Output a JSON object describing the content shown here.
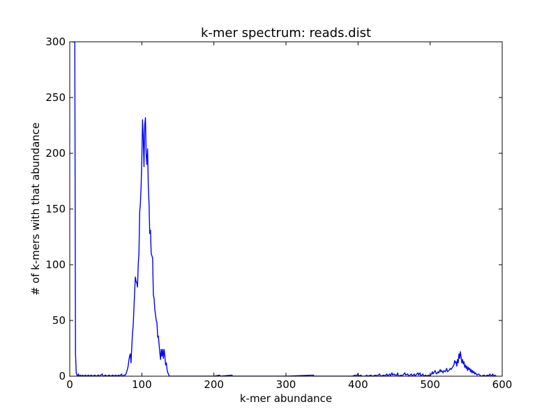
{
  "chart_data": {
    "type": "line",
    "title": "k-mer spectrum: reads.dist",
    "xlabel": "k-mer abundance",
    "ylabel": "# of k-mers with that abundance",
    "xlim": [
      0,
      600
    ],
    "ylim": [
      0,
      300
    ],
    "xticks": [
      0,
      100,
      200,
      300,
      400,
      500,
      600
    ],
    "yticks": [
      0,
      50,
      100,
      150,
      200,
      250,
      300
    ],
    "grid": false,
    "line_color": "#0000ff",
    "series": [
      {
        "points": [
          [
            3,
            300
          ],
          [
            4,
            300
          ],
          [
            5,
            300
          ],
          [
            6,
            300
          ],
          [
            7,
            300
          ],
          [
            8,
            20
          ],
          [
            9,
            3
          ],
          [
            10,
            1
          ],
          [
            11,
            0
          ],
          [
            12,
            2
          ],
          [
            13,
            0
          ],
          [
            15,
            1
          ],
          [
            16,
            0
          ],
          [
            18,
            1
          ],
          [
            19,
            0
          ],
          [
            22,
            1
          ],
          [
            23,
            0
          ],
          [
            26,
            1
          ],
          [
            27,
            0
          ],
          [
            30,
            1
          ],
          [
            31,
            0
          ],
          [
            35,
            1
          ],
          [
            36,
            0
          ],
          [
            40,
            1
          ],
          [
            41,
            0
          ],
          [
            45,
            2
          ],
          [
            46,
            0
          ],
          [
            50,
            1
          ],
          [
            51,
            0
          ],
          [
            55,
            1
          ],
          [
            56,
            0
          ],
          [
            60,
            1
          ],
          [
            61,
            0
          ],
          [
            64,
            1
          ],
          [
            65,
            0
          ],
          [
            68,
            1
          ],
          [
            69,
            0
          ],
          [
            72,
            2
          ],
          [
            73,
            0
          ],
          [
            76,
            1
          ],
          [
            77,
            1
          ],
          [
            78,
            2
          ],
          [
            79,
            4
          ],
          [
            80,
            6
          ],
          [
            81,
            9
          ],
          [
            82,
            14
          ],
          [
            83,
            18
          ],
          [
            84,
            20
          ],
          [
            85,
            12
          ],
          [
            86,
            25
          ],
          [
            87,
            38
          ],
          [
            88,
            45
          ],
          [
            89,
            60
          ],
          [
            90,
            75
          ],
          [
            91,
            89
          ],
          [
            92,
            85
          ],
          [
            93,
            84
          ],
          [
            94,
            80
          ],
          [
            95,
            100
          ],
          [
            96,
            110
          ],
          [
            97,
            147
          ],
          [
            98,
            155
          ],
          [
            99,
            170
          ],
          [
            100,
            195
          ],
          [
            101,
            230
          ],
          [
            102,
            215
          ],
          [
            103,
            188
          ],
          [
            104,
            225
          ],
          [
            105,
            232
          ],
          [
            106,
            200
          ],
          [
            107,
            190
          ],
          [
            108,
            204
          ],
          [
            109,
            170
          ],
          [
            110,
            155
          ],
          [
            111,
            128
          ],
          [
            112,
            131
          ],
          [
            113,
            110
          ],
          [
            114,
            108
          ],
          [
            115,
            106
          ],
          [
            116,
            73
          ],
          [
            117,
            70
          ],
          [
            118,
            60
          ],
          [
            119,
            55
          ],
          [
            120,
            50
          ],
          [
            121,
            48
          ],
          [
            122,
            35
          ],
          [
            123,
            36
          ],
          [
            124,
            28
          ],
          [
            125,
            21
          ],
          [
            126,
            15
          ],
          [
            127,
            24
          ],
          [
            128,
            18
          ],
          [
            129,
            24
          ],
          [
            130,
            16
          ],
          [
            131,
            24
          ],
          [
            132,
            18
          ],
          [
            133,
            10
          ],
          [
            134,
            12
          ],
          [
            135,
            6
          ],
          [
            136,
            3
          ],
          [
            137,
            2
          ],
          [
            138,
            0
          ],
          [
            140,
            0
          ],
          [
            200,
            0
          ],
          [
            208,
            1
          ],
          [
            209,
            0
          ],
          [
            225,
            1
          ],
          [
            226,
            0
          ],
          [
            300,
            0
          ],
          [
            338,
            1
          ],
          [
            339,
            0
          ],
          [
            392,
            0
          ],
          [
            396,
            1
          ],
          [
            397,
            0
          ],
          [
            400,
            2
          ],
          [
            401,
            0
          ],
          [
            404,
            1
          ],
          [
            405,
            0
          ],
          [
            410,
            0
          ],
          [
            412,
            1
          ],
          [
            413,
            0
          ],
          [
            418,
            1
          ],
          [
            419,
            0
          ],
          [
            425,
            1
          ],
          [
            426,
            0
          ],
          [
            430,
            2
          ],
          [
            431,
            0
          ],
          [
            436,
            1
          ],
          [
            437,
            0
          ],
          [
            440,
            2
          ],
          [
            441,
            0
          ],
          [
            444,
            2
          ],
          [
            445,
            0
          ],
          [
            447,
            3
          ],
          [
            448,
            1
          ],
          [
            450,
            2
          ],
          [
            451,
            1
          ],
          [
            454,
            1
          ],
          [
            455,
            3
          ],
          [
            456,
            0
          ],
          [
            460,
            1
          ],
          [
            461,
            0
          ],
          [
            465,
            3
          ],
          [
            466,
            1
          ],
          [
            469,
            2
          ],
          [
            470,
            0
          ],
          [
            474,
            2
          ],
          [
            475,
            0
          ],
          [
            478,
            2
          ],
          [
            479,
            0
          ],
          [
            483,
            3
          ],
          [
            484,
            1
          ],
          [
            486,
            3
          ],
          [
            487,
            0
          ],
          [
            490,
            2
          ],
          [
            491,
            0
          ],
          [
            494,
            1
          ],
          [
            495,
            0
          ],
          [
            498,
            1
          ],
          [
            499,
            0
          ],
          [
            502,
            2
          ],
          [
            503,
            4
          ],
          [
            504,
            2
          ],
          [
            505,
            3
          ],
          [
            507,
            5
          ],
          [
            508,
            3
          ],
          [
            509,
            2
          ],
          [
            511,
            4
          ],
          [
            512,
            3
          ],
          [
            514,
            6
          ],
          [
            515,
            4
          ],
          [
            516,
            5
          ],
          [
            518,
            3
          ],
          [
            519,
            5
          ],
          [
            521,
            4
          ],
          [
            523,
            7
          ],
          [
            524,
            4
          ],
          [
            526,
            5
          ],
          [
            528,
            7
          ],
          [
            529,
            6
          ],
          [
            531,
            8
          ],
          [
            533,
            10
          ],
          [
            534,
            14
          ],
          [
            535,
            12
          ],
          [
            536,
            13
          ],
          [
            537,
            9
          ],
          [
            538,
            15
          ],
          [
            539,
            12
          ],
          [
            540,
            20
          ],
          [
            541,
            16
          ],
          [
            542,
            22
          ],
          [
            543,
            17
          ],
          [
            544,
            12
          ],
          [
            545,
            15
          ],
          [
            546,
            11
          ],
          [
            547,
            13
          ],
          [
            548,
            8
          ],
          [
            549,
            10
          ],
          [
            550,
            7
          ],
          [
            551,
            9
          ],
          [
            552,
            5
          ],
          [
            553,
            8
          ],
          [
            554,
            6
          ],
          [
            555,
            7
          ],
          [
            556,
            4
          ],
          [
            557,
            6
          ],
          [
            558,
            3
          ],
          [
            559,
            5
          ],
          [
            560,
            3
          ],
          [
            561,
            4
          ],
          [
            562,
            2
          ],
          [
            563,
            3
          ],
          [
            565,
            1
          ],
          [
            567,
            2
          ],
          [
            569,
            1
          ],
          [
            571,
            0
          ],
          [
            575,
            1
          ],
          [
            576,
            0
          ],
          [
            580,
            1
          ],
          [
            581,
            0
          ],
          [
            583,
            2
          ],
          [
            584,
            0
          ],
          [
            586,
            1
          ],
          [
            587,
            2
          ],
          [
            588,
            0
          ],
          [
            590,
            1
          ],
          [
            591,
            0
          ],
          [
            593,
            0
          ]
        ]
      }
    ]
  }
}
